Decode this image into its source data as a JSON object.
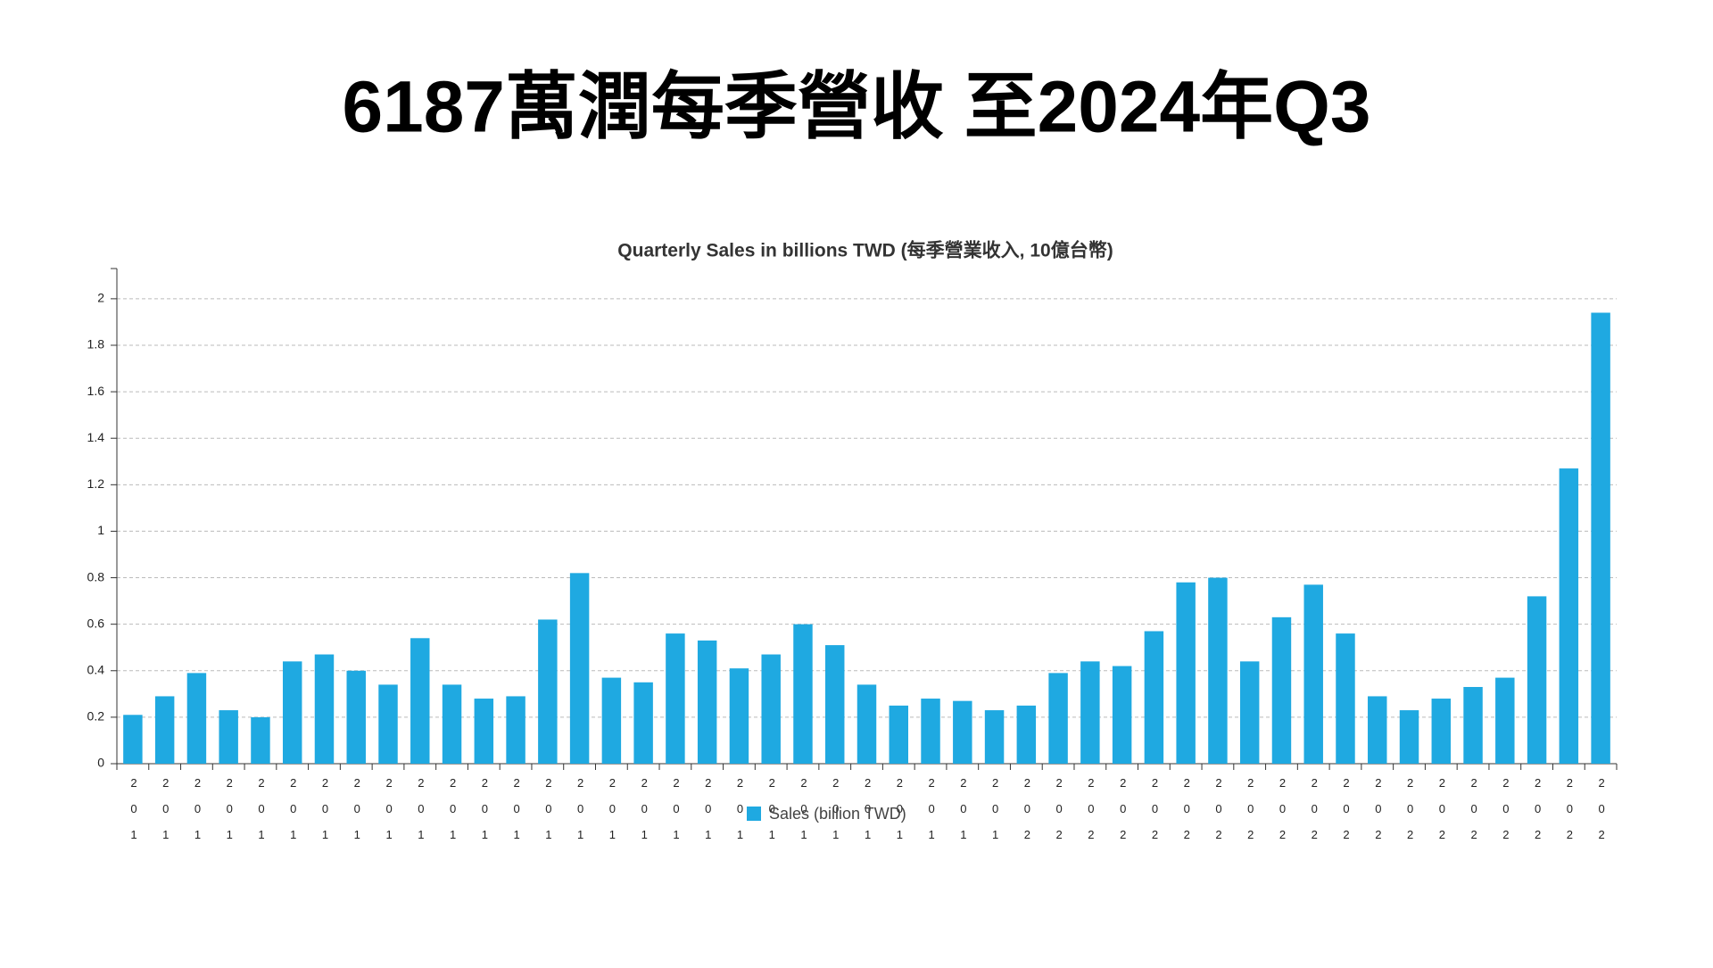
{
  "chart_data": {
    "type": "bar",
    "title": "6187萬潤每季營收 至2024年Q3",
    "subtitle": "Quarterly Sales in billions TWD (每季營業收入, 10億台幣)",
    "categories": [
      "201",
      "201",
      "201",
      "201",
      "201",
      "201",
      "201",
      "201",
      "201",
      "201",
      "201",
      "201",
      "201",
      "201",
      "201",
      "201",
      "201",
      "201",
      "201",
      "201",
      "201",
      "201",
      "201",
      "201",
      "201",
      "201",
      "201",
      "201",
      "202",
      "202",
      "202",
      "202",
      "202",
      "202",
      "202",
      "202",
      "202",
      "202",
      "202",
      "202",
      "202",
      "202",
      "202",
      "202",
      "202",
      "202",
      "202"
    ],
    "series": [
      {
        "name": "Sales (billion TWD)",
        "color": "#1fa9e1",
        "values": [
          0.21,
          0.29,
          0.39,
          0.23,
          0.2,
          0.44,
          0.47,
          0.4,
          0.34,
          0.54,
          0.34,
          0.28,
          0.29,
          0.62,
          0.82,
          0.37,
          0.35,
          0.56,
          0.53,
          0.41,
          0.47,
          0.6,
          0.51,
          0.34,
          0.25,
          0.28,
          0.27,
          0.23,
          0.25,
          0.39,
          0.44,
          0.42,
          0.57,
          0.78,
          0.8,
          0.44,
          0.63,
          0.77,
          0.56,
          0.29,
          0.23,
          0.28,
          0.33,
          0.37,
          0.72,
          1.27,
          1.94
        ]
      }
    ],
    "ylim": [
      0,
      2.13
    ],
    "yticks": [
      0,
      0.2,
      0.4,
      0.6,
      0.8,
      1,
      1.2,
      1.4,
      1.6,
      1.8,
      2
    ],
    "grid": true,
    "legend": "bottom"
  }
}
